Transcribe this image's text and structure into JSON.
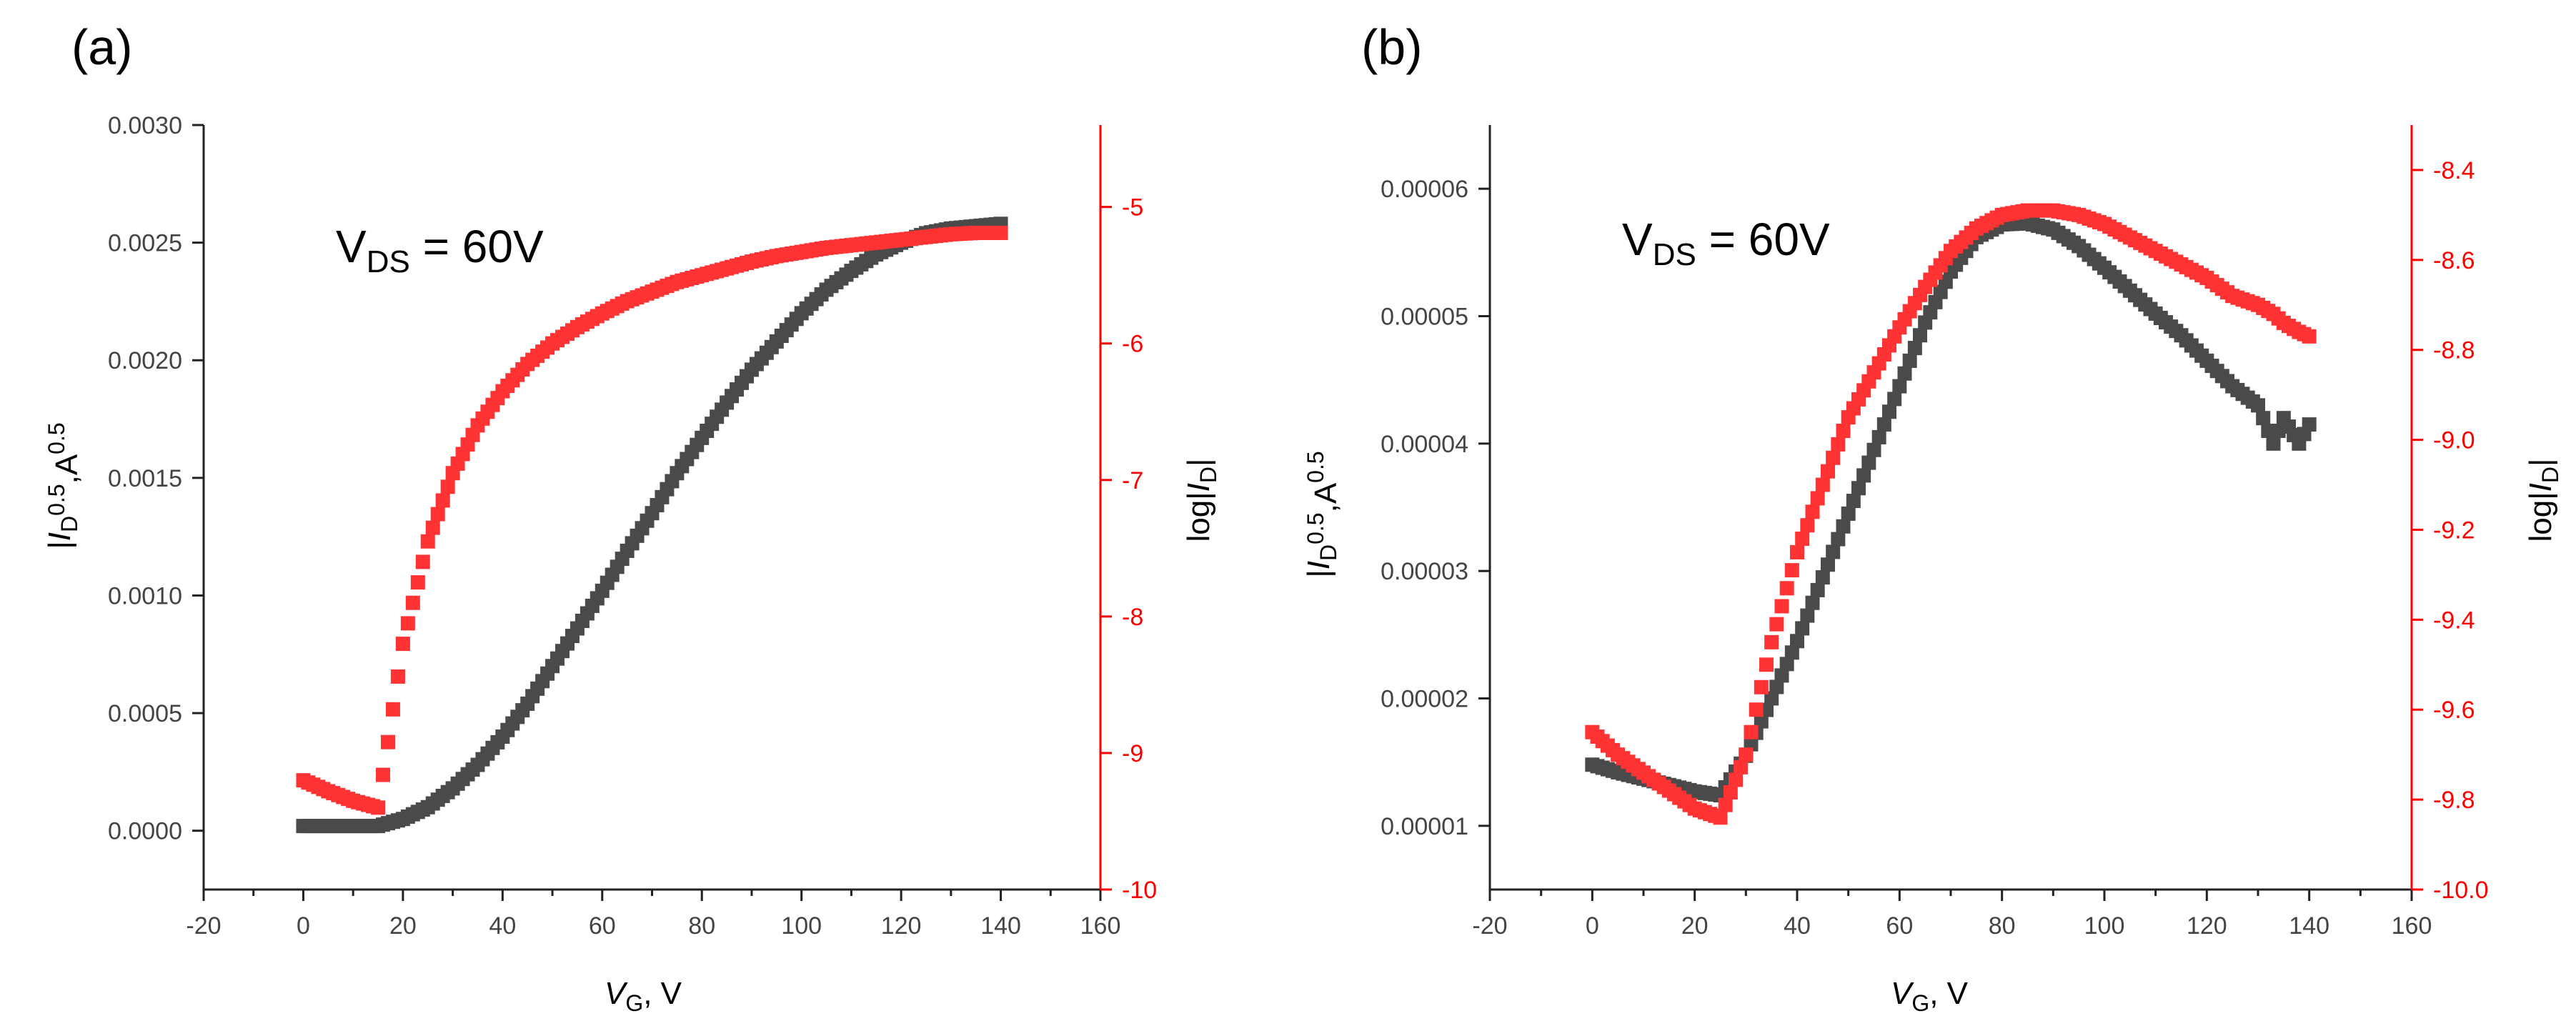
{
  "chart_data": [
    {
      "type": "scatter",
      "panel_label": "(a)",
      "annotation": {
        "main": "V",
        "sub": "DS",
        "rest": " = 60V"
      },
      "xlabel": {
        "italic": "V",
        "sub": "G",
        "rest": ", V"
      },
      "ylabel_left": {
        "pre": "|",
        "italic": "I",
        "sub": "D",
        "sup1": "0.5",
        "rest": ",A",
        "sup2": "0.5"
      },
      "ylabel_right": {
        "pre": "log|",
        "italic": "I",
        "sub": "D",
        "post": "|"
      },
      "xlim": [
        -20,
        160
      ],
      "ylim_left": [
        -0.00025,
        0.003
      ],
      "ylim_right": [
        -10,
        -4.4
      ],
      "xticks": [
        "-20",
        "0",
        "20",
        "40",
        "60",
        "80",
        "100",
        "120",
        "140",
        "160"
      ],
      "yticks_left": [
        "0.0000",
        "0.0005",
        "0.0010",
        "0.0015",
        "0.0020",
        "0.0025",
        "0.0030"
      ],
      "yticks_right": [
        "-10",
        "-9",
        "-8",
        "-7",
        "-6",
        "-5"
      ],
      "series": [
        {
          "name": "sqrt |ID|",
          "axis": "left",
          "color": "#4a4a4a",
          "x": [
            0,
            10,
            15,
            20,
            25,
            30,
            35,
            40,
            45,
            50,
            55,
            60,
            65,
            70,
            75,
            80,
            85,
            90,
            95,
            100,
            105,
            110,
            115,
            120,
            125,
            130,
            135,
            140
          ],
          "y": [
            2e-05,
            2e-05,
            2e-05,
            5e-05,
            0.0001,
            0.00018,
            0.00028,
            0.0004,
            0.00054,
            0.0007,
            0.00086,
            0.00102,
            0.00119,
            0.00135,
            0.00152,
            0.00167,
            0.00182,
            0.00196,
            0.00208,
            0.0022,
            0.0023,
            0.00238,
            0.00245,
            0.0025,
            0.00254,
            0.00256,
            0.00257,
            0.00258
          ]
        },
        {
          "name": "log |ID|",
          "axis": "right",
          "color": "#ff3333",
          "x": [
            0,
            5,
            10,
            15,
            20,
            25,
            30,
            35,
            40,
            45,
            50,
            55,
            60,
            65,
            70,
            75,
            80,
            85,
            90,
            95,
            100,
            105,
            110,
            115,
            120,
            125,
            130,
            135,
            140
          ],
          "y": [
            -9.2,
            -9.28,
            -9.35,
            -9.4,
            -8.2,
            -7.45,
            -6.95,
            -6.6,
            -6.35,
            -6.15,
            -6.0,
            -5.88,
            -5.78,
            -5.69,
            -5.62,
            -5.55,
            -5.5,
            -5.45,
            -5.4,
            -5.36,
            -5.33,
            -5.3,
            -5.28,
            -5.26,
            -5.24,
            -5.22,
            -5.2,
            -5.19,
            -5.19
          ]
        }
      ]
    },
    {
      "type": "scatter",
      "panel_label": "(b)",
      "annotation": {
        "main": "V",
        "sub": "DS",
        "rest": " = 60V"
      },
      "xlabel": {
        "italic": "V",
        "sub": "G",
        "rest": ", V"
      },
      "ylabel_left": {
        "pre": "|",
        "italic": "I",
        "sub": "D",
        "sup1": "0.5",
        "rest": ",A",
        "sup2": "0.5"
      },
      "ylabel_right": {
        "pre": "log|",
        "italic": "I",
        "sub": "D",
        "post": "|"
      },
      "xlim": [
        -20,
        160
      ],
      "ylim_left": [
        5e-06,
        6.5e-05
      ],
      "ylim_right": [
        -10,
        -8.3
      ],
      "xticks": [
        "-20",
        "0",
        "20",
        "40",
        "60",
        "80",
        "100",
        "120",
        "140",
        "160"
      ],
      "yticks_left": [
        "0.00001",
        "0.00002",
        "0.00003",
        "0.00004",
        "0.00005",
        "0.00006"
      ],
      "yticks_right": [
        "-10.0",
        "-9.8",
        "-9.6",
        "-9.4",
        "-9.2",
        "-9.0",
        "-8.8",
        "-8.6",
        "-8.4"
      ],
      "series": [
        {
          "name": "sqrt |ID|",
          "axis": "left",
          "color": "#4a4a4a",
          "x": [
            0,
            5,
            10,
            15,
            20,
            25,
            30,
            35,
            40,
            45,
            50,
            55,
            60,
            65,
            70,
            75,
            80,
            85,
            90,
            95,
            100,
            105,
            110,
            115,
            120,
            125,
            130,
            133,
            135,
            138,
            140
          ],
          "y": [
            1.48e-05,
            1.42e-05,
            1.37e-05,
            1.32e-05,
            1.27e-05,
            1.24e-05,
            1.55e-05,
            2e-05,
            2.45e-05,
            2.95e-05,
            3.45e-05,
            3.95e-05,
            4.45e-05,
            4.95e-05,
            5.35e-05,
            5.62e-05,
            5.72e-05,
            5.73e-05,
            5.68e-05,
            5.55e-05,
            5.38e-05,
            5.2e-05,
            5.02e-05,
            4.85e-05,
            4.65e-05,
            4.45e-05,
            4.3e-05,
            4e-05,
            4.2e-05,
            4e-05,
            4.15e-05
          ]
        },
        {
          "name": "log |ID|",
          "axis": "right",
          "color": "#ff3333",
          "x": [
            0,
            5,
            10,
            15,
            20,
            25,
            30,
            35,
            40,
            45,
            50,
            55,
            60,
            65,
            70,
            75,
            80,
            85,
            90,
            95,
            100,
            105,
            110,
            115,
            120,
            125,
            130,
            133,
            135,
            138,
            140
          ],
          "y": [
            -9.65,
            -9.7,
            -9.74,
            -9.78,
            -9.82,
            -9.84,
            -9.7,
            -9.45,
            -9.25,
            -9.1,
            -8.95,
            -8.85,
            -8.75,
            -8.66,
            -8.58,
            -8.53,
            -8.5,
            -8.49,
            -8.49,
            -8.5,
            -8.52,
            -8.55,
            -8.58,
            -8.61,
            -8.64,
            -8.68,
            -8.7,
            -8.72,
            -8.74,
            -8.76,
            -8.77
          ]
        }
      ]
    }
  ]
}
